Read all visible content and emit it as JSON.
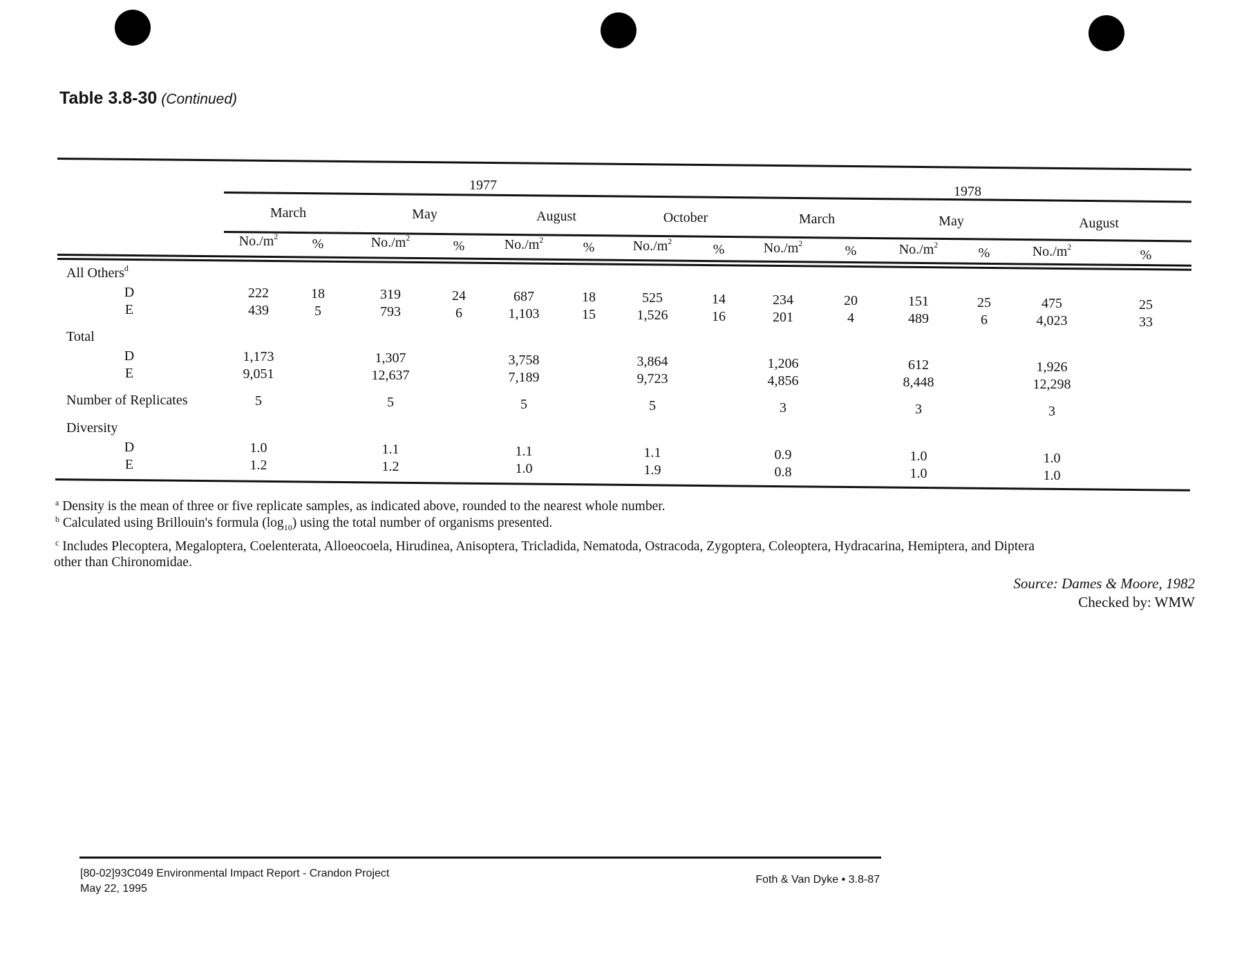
{
  "header": {
    "title": "Table 3.8-30",
    "continued": "(Continued)"
  },
  "table": {
    "years": [
      {
        "label": "1977",
        "span": [
          0,
          4
        ]
      },
      {
        "label": "1978",
        "span": [
          4,
          7
        ]
      }
    ],
    "months": [
      "March",
      "May",
      "August",
      "October",
      "March",
      "May",
      "August"
    ],
    "unit_label": "No./m",
    "unit_sup": "2",
    "pct_label": "%",
    "groups": [
      {
        "label": "All Others",
        "sup": "d",
        "rows": [
          {
            "label": "D",
            "values": [
              [
                "222",
                "18"
              ],
              [
                "319",
                "24"
              ],
              [
                "687",
                "18"
              ],
              [
                "525",
                "14"
              ],
              [
                "234",
                "20"
              ],
              [
                "151",
                "25"
              ],
              [
                "475",
                "25"
              ]
            ]
          },
          {
            "label": "E",
            "values": [
              [
                "439",
                "5"
              ],
              [
                "793",
                "6"
              ],
              [
                "1,103",
                "15"
              ],
              [
                "1,526",
                "16"
              ],
              [
                "201",
                "4"
              ],
              [
                "489",
                "6"
              ],
              [
                "4,023",
                "33"
              ]
            ]
          }
        ]
      },
      {
        "label": "Total",
        "rows": [
          {
            "label": "D",
            "values": [
              [
                "1,173",
                ""
              ],
              [
                "1,307",
                ""
              ],
              [
                "3,758",
                ""
              ],
              [
                "3,864",
                ""
              ],
              [
                "1,206",
                ""
              ],
              [
                "612",
                ""
              ],
              [
                "1,926",
                ""
              ]
            ]
          },
          {
            "label": "E",
            "values": [
              [
                "9,051",
                ""
              ],
              [
                "12,637",
                ""
              ],
              [
                "7,189",
                ""
              ],
              [
                "9,723",
                ""
              ],
              [
                "4,856",
                ""
              ],
              [
                "8,448",
                ""
              ],
              [
                "12,298",
                ""
              ]
            ]
          }
        ]
      },
      {
        "label": "Number of Replicates",
        "inline": [
          [
            "5",
            ""
          ],
          [
            "5",
            ""
          ],
          [
            "5",
            ""
          ],
          [
            "5",
            ""
          ],
          [
            "3",
            ""
          ],
          [
            "3",
            ""
          ],
          [
            "3",
            ""
          ]
        ],
        "rows": []
      },
      {
        "label": "Diversity",
        "rows": [
          {
            "label": "D",
            "values": [
              [
                "1.0",
                ""
              ],
              [
                "1.1",
                ""
              ],
              [
                "1.1",
                ""
              ],
              [
                "1.1",
                ""
              ],
              [
                "0.9",
                ""
              ],
              [
                "1.0",
                ""
              ],
              [
                "1.0",
                ""
              ]
            ]
          },
          {
            "label": "E",
            "values": [
              [
                "1.2",
                ""
              ],
              [
                "1.2",
                ""
              ],
              [
                "1.0",
                ""
              ],
              [
                "1.9",
                ""
              ],
              [
                "0.8",
                ""
              ],
              [
                "1.0",
                ""
              ],
              [
                "1.0",
                ""
              ]
            ]
          }
        ]
      }
    ]
  },
  "footnotes": [
    {
      "mark": "a",
      "text": "Density is the mean of three or five replicate samples, as indicated above, rounded to the nearest whole number."
    },
    {
      "mark": "b",
      "text_before": "Calculated using Brillouin's formula (log",
      "sub": "10",
      "text_after": ") using the total number of organisms presented."
    },
    {
      "mark": "c",
      "text": "Includes Plecoptera, Megaloptera, Coelenterata, Alloeocoela, Hirudinea, Anisoptera, Tricladida, Nematoda, Ostracoda, Zygoptera, Coleoptera, Hydracarina, Hemiptera, and Diptera",
      "text2": "other than Chironomidae."
    }
  ],
  "source": "Source: Dames & Moore, 1982",
  "checked_by": "Checked by: WMW",
  "footer": {
    "doc_id": "[80-02]93C049  Environmental Impact Report - Crandon Project",
    "date": "May 22, 1995",
    "right": "Foth & Van Dyke • 3.8-87"
  }
}
